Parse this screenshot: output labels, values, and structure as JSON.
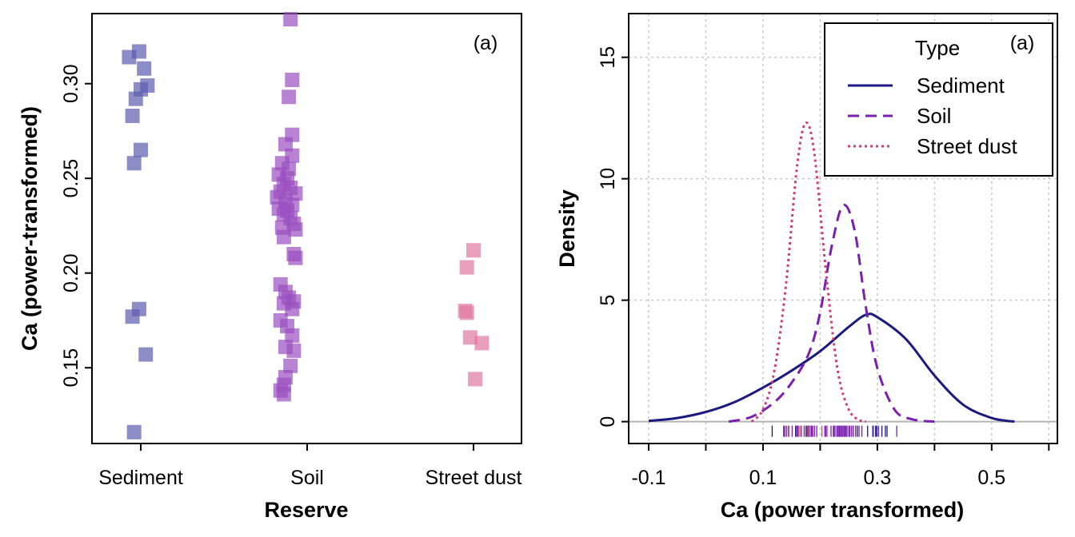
{
  "chart_data": [
    {
      "type": "scatter",
      "panel_label": "(a)",
      "xlabel": "Reserve",
      "ylabel": "Ca (power-transformed)",
      "categories": [
        "Sediment",
        "Soil",
        "Street dust"
      ],
      "y_ticks": [
        "0.15",
        "0.20",
        "0.25",
        "0.30"
      ],
      "ylim": [
        0.11,
        0.337
      ],
      "marker": "square",
      "grid": false,
      "legend": "none",
      "series": [
        {
          "category": "Sediment",
          "color": "#5b5baf",
          "points": [
            {
              "x": 0.93,
              "y": 0.314
            },
            {
              "x": 0.99,
              "y": 0.317
            },
            {
              "x": 1.02,
              "y": 0.308
            },
            {
              "x": 1.04,
              "y": 0.299
            },
            {
              "x": 1.0,
              "y": 0.297
            },
            {
              "x": 0.97,
              "y": 0.292
            },
            {
              "x": 0.95,
              "y": 0.283
            },
            {
              "x": 1.0,
              "y": 0.265
            },
            {
              "x": 0.96,
              "y": 0.258
            },
            {
              "x": 0.95,
              "y": 0.177
            },
            {
              "x": 0.99,
              "y": 0.181
            },
            {
              "x": 1.03,
              "y": 0.157
            },
            {
              "x": 0.96,
              "y": 0.116
            }
          ]
        },
        {
          "category": "Soil",
          "color": "#9a4fc0",
          "points": [
            {
              "x": 1.9,
              "y": 0.334
            },
            {
              "x": 1.91,
              "y": 0.302
            },
            {
              "x": 1.89,
              "y": 0.293
            },
            {
              "x": 1.91,
              "y": 0.273
            },
            {
              "x": 1.87,
              "y": 0.268
            },
            {
              "x": 1.91,
              "y": 0.262
            },
            {
              "x": 1.85,
              "y": 0.258
            },
            {
              "x": 1.89,
              "y": 0.255
            },
            {
              "x": 1.83,
              "y": 0.252
            },
            {
              "x": 1.88,
              "y": 0.25
            },
            {
              "x": 1.86,
              "y": 0.247
            },
            {
              "x": 1.9,
              "y": 0.245
            },
            {
              "x": 1.84,
              "y": 0.243
            },
            {
              "x": 1.93,
              "y": 0.242
            },
            {
              "x": 1.82,
              "y": 0.24
            },
            {
              "x": 1.87,
              "y": 0.238
            },
            {
              "x": 1.91,
              "y": 0.236
            },
            {
              "x": 1.83,
              "y": 0.234
            },
            {
              "x": 1.88,
              "y": 0.233
            },
            {
              "x": 1.86,
              "y": 0.231
            },
            {
              "x": 1.9,
              "y": 0.229
            },
            {
              "x": 1.92,
              "y": 0.226
            },
            {
              "x": 1.85,
              "y": 0.224
            },
            {
              "x": 1.93,
              "y": 0.223
            },
            {
              "x": 1.86,
              "y": 0.219
            },
            {
              "x": 1.92,
              "y": 0.21
            },
            {
              "x": 1.93,
              "y": 0.208
            },
            {
              "x": 1.84,
              "y": 0.194
            },
            {
              "x": 1.87,
              "y": 0.19
            },
            {
              "x": 1.89,
              "y": 0.187
            },
            {
              "x": 1.92,
              "y": 0.185
            },
            {
              "x": 1.86,
              "y": 0.184
            },
            {
              "x": 1.91,
              "y": 0.181
            },
            {
              "x": 1.84,
              "y": 0.175
            },
            {
              "x": 1.88,
              "y": 0.172
            },
            {
              "x": 1.91,
              "y": 0.167
            },
            {
              "x": 1.87,
              "y": 0.161
            },
            {
              "x": 1.92,
              "y": 0.159
            },
            {
              "x": 1.9,
              "y": 0.151
            },
            {
              "x": 1.87,
              "y": 0.145
            },
            {
              "x": 1.86,
              "y": 0.141
            },
            {
              "x": 1.84,
              "y": 0.138
            },
            {
              "x": 1.86,
              "y": 0.136
            }
          ]
        },
        {
          "category": "Street dust",
          "color": "#e0789f",
          "points": [
            {
              "x": 3.0,
              "y": 0.212
            },
            {
              "x": 2.96,
              "y": 0.203
            },
            {
              "x": 2.95,
              "y": 0.18
            },
            {
              "x": 2.96,
              "y": 0.179
            },
            {
              "x": 2.98,
              "y": 0.166
            },
            {
              "x": 3.05,
              "y": 0.163
            },
            {
              "x": 3.01,
              "y": 0.144
            }
          ]
        }
      ]
    },
    {
      "type": "line",
      "panel_label": "(a)",
      "xlabel": "Ca (power transformed)",
      "ylabel": "Density",
      "x_ticks": [
        "-0.1",
        "0.1",
        "0.3",
        "0.5"
      ],
      "y_ticks": [
        "0",
        "5",
        "10",
        "15"
      ],
      "xlim": [
        -0.135,
        0.615
      ],
      "ylim": [
        -0.9,
        16.8
      ],
      "grid": true,
      "legend": "top-right",
      "legend_title": "Type",
      "series": [
        {
          "name": "Sediment",
          "color": "#1a1a80",
          "dash": "solid",
          "x": [
            -0.1,
            -0.05,
            0.0,
            0.05,
            0.1,
            0.15,
            0.2,
            0.25,
            0.28,
            0.3,
            0.35,
            0.4,
            0.45,
            0.5,
            0.54
          ],
          "y": [
            0.03,
            0.15,
            0.4,
            0.8,
            1.4,
            2.1,
            2.9,
            3.9,
            4.4,
            4.3,
            3.4,
            1.9,
            0.7,
            0.15,
            0.0
          ]
        },
        {
          "name": "Soil",
          "color": "#7a1fb0",
          "dash": "dashed",
          "x": [
            0.04,
            0.08,
            0.12,
            0.15,
            0.18,
            0.2,
            0.22,
            0.24,
            0.26,
            0.28,
            0.3,
            0.33,
            0.36,
            0.4
          ],
          "y": [
            0.0,
            0.2,
            0.8,
            1.6,
            2.8,
            4.5,
            7.2,
            8.9,
            7.9,
            4.7,
            2.2,
            0.5,
            0.1,
            0.0
          ]
        },
        {
          "name": "Street dust",
          "color": "#cc3d7a",
          "dash": "dotted",
          "x": [
            0.08,
            0.1,
            0.12,
            0.14,
            0.16,
            0.175,
            0.19,
            0.21,
            0.23,
            0.25,
            0.27,
            0.28
          ],
          "y": [
            0.0,
            0.5,
            2.1,
            5.6,
            10.6,
            12.3,
            11.0,
            6.2,
            2.2,
            0.5,
            0.05,
            0.0
          ]
        }
      ],
      "rug": {
        "sediment_color": "#1a1a80",
        "soil_color": "#7a1fb0",
        "dust_color": "#cc3d7a",
        "sediment": [
          0.116,
          0.157,
          0.177,
          0.181,
          0.258,
          0.265,
          0.283,
          0.292,
          0.297,
          0.299,
          0.308,
          0.314,
          0.317
        ],
        "soil": [
          0.136,
          0.138,
          0.141,
          0.145,
          0.151,
          0.159,
          0.161,
          0.167,
          0.172,
          0.175,
          0.181,
          0.184,
          0.185,
          0.187,
          0.19,
          0.194,
          0.208,
          0.21,
          0.219,
          0.223,
          0.224,
          0.226,
          0.229,
          0.231,
          0.233,
          0.234,
          0.236,
          0.238,
          0.24,
          0.242,
          0.243,
          0.245,
          0.247,
          0.25,
          0.252,
          0.255,
          0.258,
          0.262,
          0.268,
          0.273,
          0.293,
          0.302,
          0.334
        ],
        "street_dust": [
          0.144,
          0.163,
          0.166,
          0.179,
          0.18,
          0.203,
          0.212
        ]
      }
    }
  ]
}
